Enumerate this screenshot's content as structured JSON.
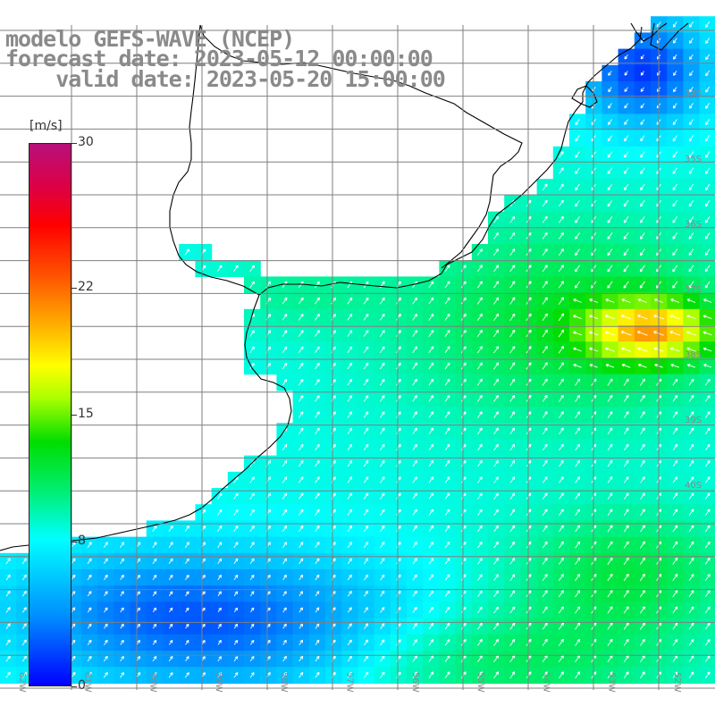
{
  "header": {
    "line1": "modelo GEFS-WAVE (NCEP)",
    "line2": "forecast date: 2023-05-12 00:00:00",
    "line3": "    valid date: 2023-05-20 15:00:00"
  },
  "colorbar": {
    "unit": "[m/s]",
    "ticks": [
      "30",
      "22",
      "15",
      "8",
      "0"
    ],
    "tick_values": [
      30,
      22,
      15,
      8,
      0
    ],
    "range": [
      0,
      30
    ]
  },
  "map": {
    "variable": "wind speed and direction",
    "units": "m/s",
    "lat_labels": [
      "34S",
      "35S",
      "36S",
      "37S",
      "38S",
      "39S",
      "40S"
    ],
    "lon_labels": [
      "62W",
      "61W",
      "60W",
      "59W",
      "58W",
      "57W",
      "56W",
      "55W",
      "54W",
      "53W",
      "52W",
      "51W"
    ],
    "colors": {
      "land": "#ffffff",
      "coastline": "#000000",
      "grid": "#7f7f7f",
      "arrows": "#ffffff",
      "labels": "#8a8a8a"
    }
  }
}
